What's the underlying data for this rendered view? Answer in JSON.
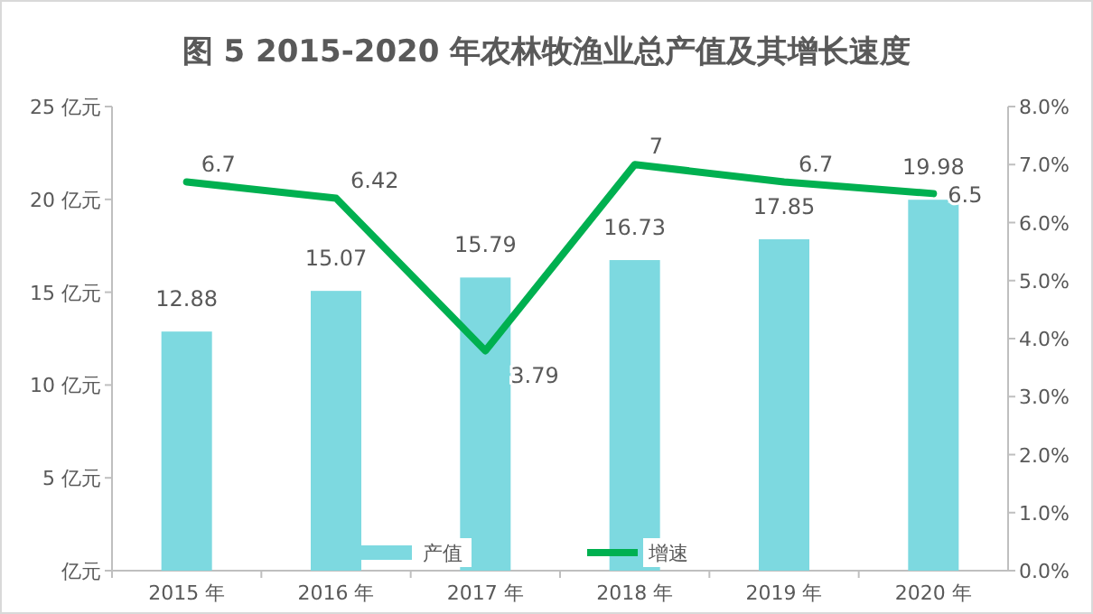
{
  "chart_data": {
    "type": "bar",
    "title": "图 5  2015-2020 年农林牧渔业总产值及其增长速度",
    "categories": [
      "2015 年",
      "2016 年",
      "2017 年",
      "2018 年",
      "2019 年",
      "2020 年"
    ],
    "series": [
      {
        "name": "产值",
        "color": "#7dd9e0",
        "values": [
          12.88,
          15.07,
          15.79,
          16.73,
          17.85,
          19.98
        ]
      },
      {
        "name": "增速",
        "type": "line",
        "axis": "y2",
        "color": "#00b050",
        "values": [
          6.7,
          6.42,
          3.79,
          7,
          6.7,
          6.5
        ]
      }
    ],
    "ylim": [
      0,
      25
    ],
    "yticks": [
      {
        "value": 0,
        "label": "亿元"
      },
      {
        "value": 5,
        "label": "5 亿元"
      },
      {
        "value": 10,
        "label": "10 亿元"
      },
      {
        "value": 15,
        "label": "15 亿元"
      },
      {
        "value": 20,
        "label": "20 亿元"
      },
      {
        "value": 25,
        "label": "25 亿元"
      }
    ],
    "y2lim": [
      0,
      8
    ],
    "y2ticks": [
      {
        "value": 0,
        "label": "0.0%"
      },
      {
        "value": 1,
        "label": "1.0%"
      },
      {
        "value": 2,
        "label": "2.0%"
      },
      {
        "value": 3,
        "label": "3.0%"
      },
      {
        "value": 4,
        "label": "4.0%"
      },
      {
        "value": 5,
        "label": "5.0%"
      },
      {
        "value": 6,
        "label": "6.0%"
      },
      {
        "value": 7,
        "label": "7.0%"
      },
      {
        "value": 8,
        "label": "8.0%"
      }
    ],
    "data_labels": true,
    "legend": "bottom",
    "grid": false
  }
}
